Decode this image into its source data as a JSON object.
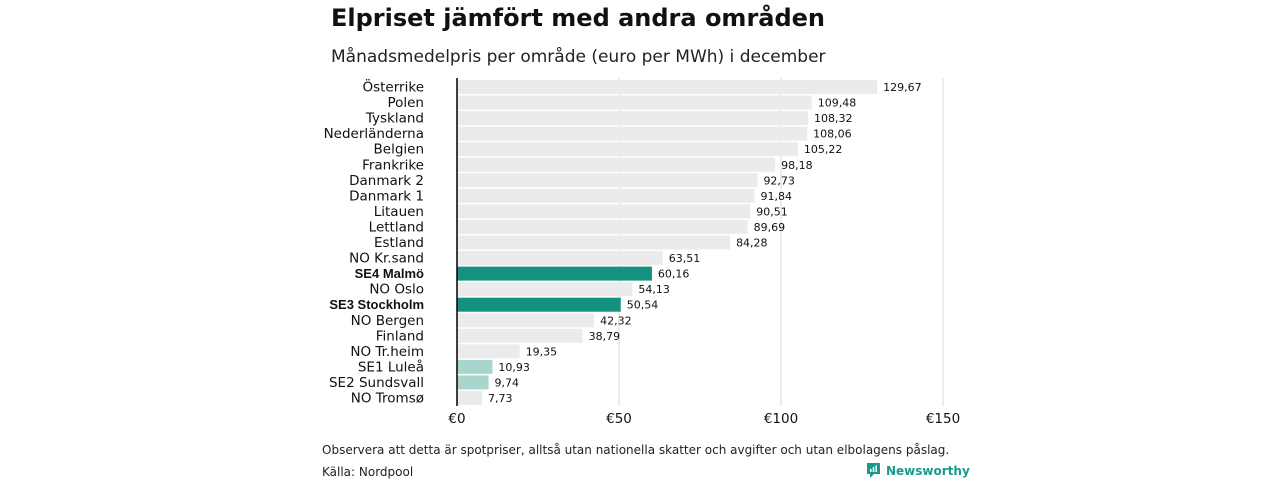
{
  "title": "Elpriset jämfört med andra områden",
  "subtitle": "Månadsmedelpris per område (euro per MWh) i december",
  "note": "Observera att detta är spotpriser, alltså utan nationella skatter och avgifter och utan elbolagens påslag.",
  "source": "Källa: Nordpool",
  "brand": {
    "name": "Newsworthy",
    "icon": "newsworthy-logo-icon"
  },
  "colors": {
    "default_bar": "#ebebeb",
    "highlight": "#14917f",
    "light_highlight": "#a8d5cc",
    "grid": "#d9d9d9",
    "baseline": "#000000"
  },
  "chart_data": {
    "type": "bar",
    "orientation": "horizontal",
    "categories": [
      "Österrike",
      "Polen",
      "Tyskland",
      "Nederländerna",
      "Belgien",
      "Frankrike",
      "Danmark  2",
      "Danmark  1",
      "Litauen",
      "Lettland",
      "Estland",
      "NO Kr.sand",
      "SE4 Malmö",
      "NO Oslo",
      "SE3 Stockholm",
      "NO Bergen",
      "Finland",
      "NO Tr.heim",
      "SE1  Luleå",
      "SE2  Sundsvall",
      "NO Tromsø"
    ],
    "values": [
      129.67,
      109.48,
      108.32,
      108.06,
      105.22,
      98.18,
      92.73,
      91.84,
      90.51,
      89.69,
      84.28,
      63.51,
      60.16,
      54.13,
      50.54,
      42.32,
      38.79,
      19.35,
      10.93,
      9.74,
      7.73
    ],
    "value_labels": [
      "129,67",
      "109,48",
      "108,32",
      "108,06",
      "105,22",
      "98,18",
      "92,73",
      "91,84",
      "90,51",
      "89,69",
      "84,28",
      "63,51",
      "60,16",
      "54,13",
      "50,54",
      "42,32",
      "38,79",
      "19,35",
      "10,93",
      "9,74",
      "7,73"
    ],
    "highlight": [
      "normal",
      "normal",
      "normal",
      "normal",
      "normal",
      "normal",
      "normal",
      "normal",
      "normal",
      "normal",
      "normal",
      "normal",
      "strong",
      "normal",
      "strong",
      "normal",
      "normal",
      "normal",
      "light",
      "light",
      "normal"
    ],
    "bold_labels": [
      false,
      false,
      false,
      false,
      false,
      false,
      false,
      false,
      false,
      false,
      false,
      false,
      true,
      false,
      true,
      false,
      false,
      false,
      false,
      false,
      false
    ],
    "xlim": [
      0,
      150
    ],
    "xticks": [
      0,
      50,
      100,
      150
    ],
    "xtick_labels": [
      "€0",
      "€50",
      "€100",
      "€150"
    ],
    "grid": true,
    "xlabel": "",
    "ylabel": ""
  }
}
